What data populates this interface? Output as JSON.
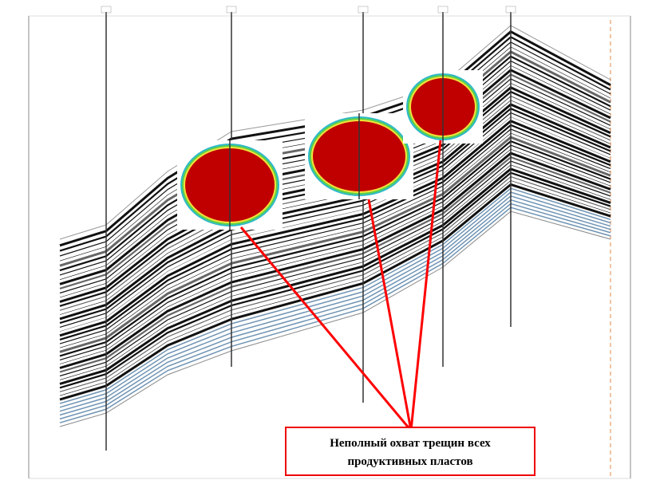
{
  "annotation": {
    "lines": [
      "Неполный охват трещин всех",
      "продуктивных пластов"
    ]
  }
}
